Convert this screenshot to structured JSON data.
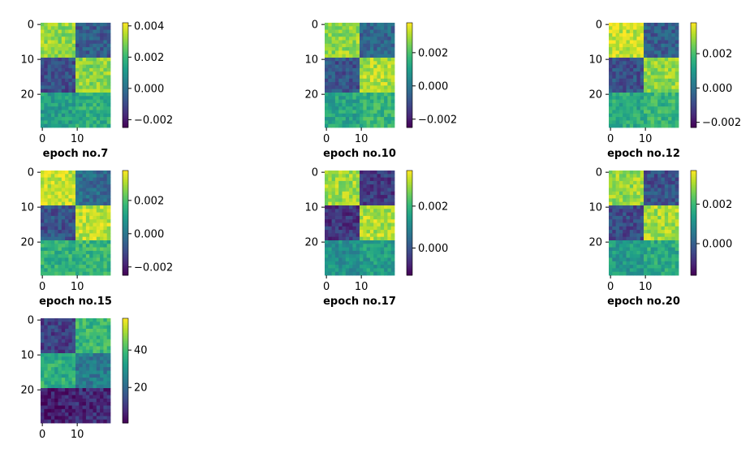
{
  "chart_data": [
    {
      "type": "heatmap",
      "caption": "epoch no.7",
      "rows": 30,
      "cols": 20,
      "yticks": [
        "0",
        "10",
        "20"
      ],
      "xticks": [
        "0",
        "10"
      ],
      "colorbar": {
        "min": -0.0025,
        "max": 0.0042,
        "ticks": [
          "0.004",
          "0.002",
          "0.000",
          "−0.002"
        ],
        "tick_values": [
          0.004,
          0.002,
          0.0,
          -0.002
        ]
      },
      "blocks": {
        "top_left": 0.0031,
        "top_right": -0.0006,
        "bottom_left_upper": -0.0009,
        "bottom_right_upper": 0.003,
        "bottom_left_lower": 0.0013,
        "bottom_right_lower": 0.0017
      }
    },
    {
      "type": "heatmap",
      "caption": "epoch no.10",
      "rows": 30,
      "cols": 20,
      "yticks": [
        "0",
        "10",
        "20"
      ],
      "xticks": [
        "0",
        "10"
      ],
      "colorbar": {
        "min": -0.0025,
        "max": 0.0038,
        "ticks": [
          "0.002",
          "0.000",
          "−0.002"
        ],
        "tick_values": [
          0.002,
          0.0,
          -0.002
        ]
      },
      "blocks": {
        "top_left": 0.0028,
        "top_right": -0.0004,
        "bottom_left_upper": -0.0009,
        "bottom_right_upper": 0.003,
        "bottom_left_lower": 0.0012,
        "bottom_right_lower": 0.0016
      }
    },
    {
      "type": "heatmap",
      "caption": "epoch no.12",
      "rows": 30,
      "cols": 20,
      "yticks": [
        "0",
        "10",
        "20"
      ],
      "xticks": [
        "0",
        "10"
      ],
      "colorbar": {
        "min": -0.0023,
        "max": 0.0038,
        "ticks": [
          "0.002",
          "0.000",
          "−0.002"
        ],
        "tick_values": [
          0.002,
          0.0,
          -0.002
        ]
      },
      "blocks": {
        "top_left": 0.0033,
        "top_right": -0.0005,
        "bottom_left_upper": -0.0008,
        "bottom_right_upper": 0.0028,
        "bottom_left_lower": 0.0014,
        "bottom_right_lower": 0.0017
      }
    },
    {
      "type": "heatmap",
      "caption": "epoch no.15",
      "rows": 30,
      "cols": 20,
      "yticks": [
        "0",
        "10",
        "20"
      ],
      "xticks": [
        "0",
        "10"
      ],
      "colorbar": {
        "min": -0.0025,
        "max": 0.0038,
        "ticks": [
          "0.002",
          "0.000",
          "−0.002"
        ],
        "tick_values": [
          0.002,
          0.0,
          -0.002
        ]
      },
      "blocks": {
        "top_left": 0.0033,
        "top_right": -0.0003,
        "bottom_left_upper": -0.0009,
        "bottom_right_upper": 0.0032,
        "bottom_left_lower": 0.0015,
        "bottom_right_lower": 0.0017
      }
    },
    {
      "type": "heatmap",
      "caption": "epoch no.17",
      "rows": 30,
      "cols": 20,
      "yticks": [
        "0",
        "10",
        "20"
      ],
      "xticks": [
        "0",
        "10"
      ],
      "colorbar": {
        "min": -0.0013,
        "max": 0.0037,
        "ticks": [
          "0.002",
          "0.000"
        ],
        "tick_values": [
          0.002,
          0.0
        ]
      },
      "blocks": {
        "top_left": 0.003,
        "top_right": -0.0004,
        "bottom_left_upper": -0.0005,
        "bottom_right_upper": 0.0031,
        "bottom_left_lower": 0.0012,
        "bottom_right_lower": 0.0015
      }
    },
    {
      "type": "heatmap",
      "caption": "epoch no.20",
      "rows": 30,
      "cols": 20,
      "yticks": [
        "0",
        "10",
        "20"
      ],
      "xticks": [
        "0",
        "10"
      ],
      "colorbar": {
        "min": -0.0016,
        "max": 0.0037,
        "ticks": [
          "0.002",
          "0.000"
        ],
        "tick_values": [
          0.002,
          0.0
        ]
      },
      "blocks": {
        "top_left": 0.0029,
        "top_right": -0.0003,
        "bottom_left_upper": -0.0004,
        "bottom_right_upper": 0.003,
        "bottom_left_lower": 0.0013,
        "bottom_right_lower": 0.0016
      }
    },
    {
      "type": "heatmap",
      "caption": "",
      "rows": 30,
      "cols": 20,
      "yticks": [
        "0",
        "10",
        "20"
      ],
      "xticks": [
        "0",
        "10"
      ],
      "colorbar": {
        "min": 1,
        "max": 57,
        "ticks": [
          "40",
          "20"
        ],
        "tick_values": [
          40,
          20
        ]
      },
      "blocks": {
        "top_left": 12,
        "top_right": 38,
        "bottom_left_upper": 36,
        "bottom_right_upper": 24,
        "bottom_left_lower": 6,
        "bottom_right_lower": 8
      }
    }
  ],
  "colormap": "viridis"
}
